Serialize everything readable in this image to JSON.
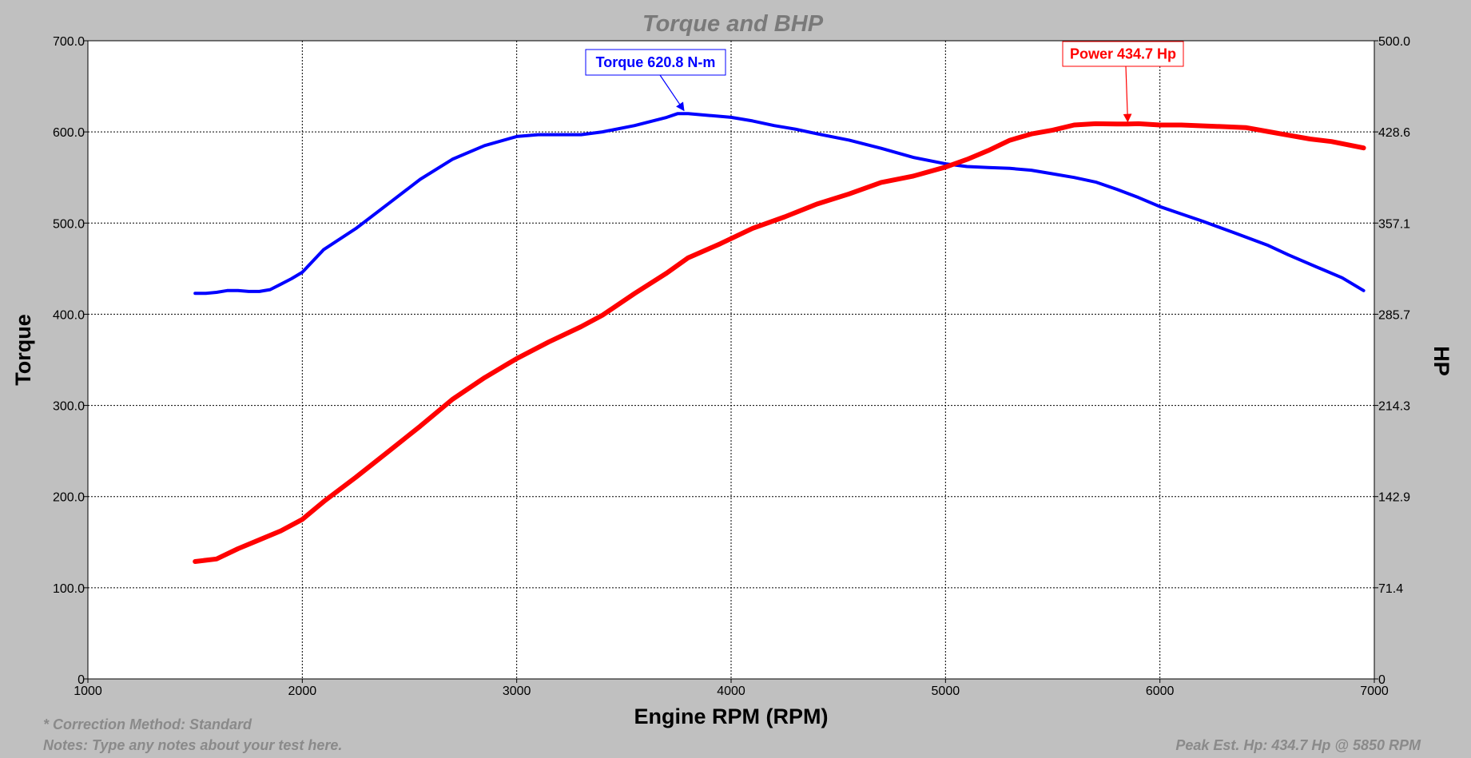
{
  "chart_data": {
    "type": "line",
    "title": "Torque and BHP",
    "xlabel": "Engine RPM (RPM)",
    "ylabel": "Torque",
    "y2label": "HP",
    "xlim": [
      1000,
      7000
    ],
    "ylim": [
      0,
      700
    ],
    "y2lim": [
      0,
      500
    ],
    "x_ticks": [
      "1000",
      "2000",
      "3000",
      "4000",
      "5000",
      "6000",
      "7000"
    ],
    "y_ticks": [
      "0",
      "100.0",
      "200.0",
      "300.0",
      "400.0",
      "500.0",
      "600.0",
      "700.0"
    ],
    "y2_ticks": [
      "0",
      "71.4",
      "142.9",
      "214.3",
      "285.7",
      "357.1",
      "428.6",
      "500.0"
    ],
    "grid": true,
    "colors": {
      "torque": "#0000ff",
      "power": "#ff0000",
      "background": "#c0c0c0",
      "plot": "#ffffff"
    },
    "series": [
      {
        "key": "torque",
        "axis": "left",
        "x": [
          1500,
          1550,
          1600,
          1650,
          1700,
          1750,
          1800,
          1850,
          1900,
          1950,
          2000,
          2100,
          2250,
          2400,
          2550,
          2700,
          2850,
          3000,
          3100,
          3200,
          3300,
          3400,
          3550,
          3700,
          3750,
          3800,
          3900,
          4000,
          4100,
          4200,
          4300,
          4400,
          4550,
          4700,
          4850,
          5000,
          5100,
          5200,
          5300,
          5400,
          5500,
          5600,
          5700,
          5800,
          5900,
          6000,
          6100,
          6200,
          6350,
          6500,
          6600,
          6750,
          6850,
          6950
        ],
        "values": [
          423,
          423,
          424,
          426,
          426,
          425,
          425,
          427,
          433,
          439,
          446,
          471,
          494,
          521,
          548,
          570,
          585,
          595,
          597,
          597,
          597,
          600,
          607,
          616,
          620,
          620,
          618,
          616,
          612,
          607,
          603,
          598,
          591,
          582,
          572,
          565,
          562,
          561,
          560,
          558,
          554,
          550,
          545,
          537,
          528,
          518,
          510,
          502,
          489,
          476,
          465,
          450,
          440,
          426
        ]
      },
      {
        "key": "power",
        "axis": "right",
        "x": [
          1500,
          1600,
          1700,
          1800,
          1900,
          2000,
          2100,
          2250,
          2400,
          2550,
          2700,
          2850,
          3000,
          3150,
          3300,
          3400,
          3550,
          3700,
          3800,
          3950,
          4100,
          4250,
          4400,
          4550,
          4700,
          4850,
          5000,
          5100,
          5200,
          5300,
          5400,
          5500,
          5600,
          5700,
          5800,
          5850,
          5900,
          6000,
          6100,
          6250,
          6400,
          6500,
          6600,
          6700,
          6800,
          6950
        ],
        "values": [
          92,
          94,
          102,
          109,
          116,
          125,
          139,
          158,
          178,
          198,
          219,
          236,
          251,
          264,
          276,
          285,
          302,
          318,
          330,
          341,
          353,
          362,
          372,
          380,
          389,
          394,
          401,
          407,
          414,
          422,
          427,
          430,
          434,
          435,
          434.7,
          434.7,
          435,
          434,
          434,
          433,
          432,
          429,
          426,
          423,
          421,
          416
        ]
      }
    ],
    "annotations": [
      {
        "series": "torque",
        "text": "Torque 620.8 N-m",
        "x": 3780,
        "y": 620.8
      },
      {
        "series": "power",
        "text": "Power 434.7 Hp",
        "x": 5850,
        "y": 434.7
      }
    ]
  },
  "footer": {
    "correction": "* Correction Method: Standard",
    "notes": "Notes: Type any notes about your test here.",
    "peak": "Peak Est. Hp: 434.7 Hp @ 5850 RPM"
  }
}
